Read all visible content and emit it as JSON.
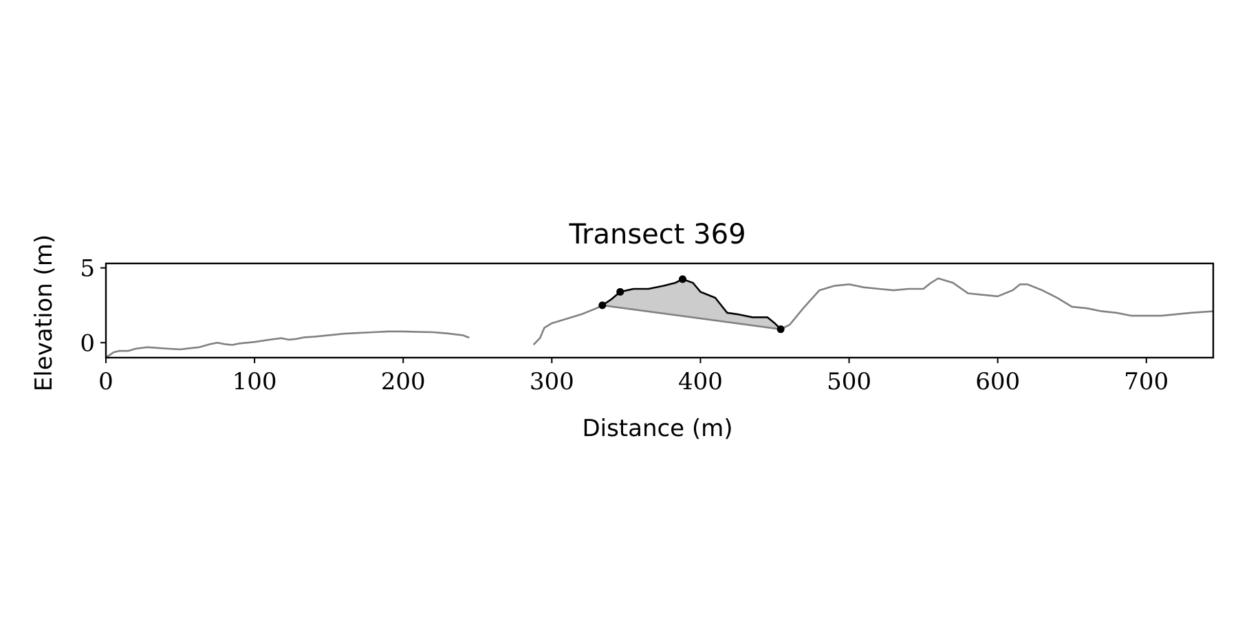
{
  "chart_data": {
    "type": "line",
    "title": "Transect 369",
    "xlabel": "Distance (m)",
    "ylabel": "Elevation (m)",
    "xlim": [
      0,
      745
    ],
    "ylim": [
      -1,
      5.3
    ],
    "x_ticks": [
      0,
      100,
      200,
      300,
      400,
      500,
      600,
      700
    ],
    "y_ticks": [
      0,
      5
    ],
    "grid": false,
    "colors": {
      "profile": "#808080",
      "dune": "#000000",
      "fill": "#cccccc",
      "axes": "#000000"
    },
    "series": [
      {
        "role": "profile-segment-1",
        "x": [
          0,
          5,
          9,
          15,
          20,
          28,
          35,
          42,
          50,
          58,
          63,
          70,
          75,
          80,
          85,
          90,
          95,
          100,
          110,
          118,
          123,
          128,
          133,
          140,
          150,
          160,
          170,
          180,
          190,
          200,
          210,
          220,
          230,
          240,
          244
        ],
        "y": [
          -1.0,
          -0.65,
          -0.55,
          -0.55,
          -0.4,
          -0.3,
          -0.35,
          -0.4,
          -0.45,
          -0.35,
          -0.3,
          -0.1,
          0.0,
          -0.1,
          -0.15,
          -0.05,
          0.0,
          0.05,
          0.2,
          0.3,
          0.2,
          0.25,
          0.35,
          0.4,
          0.5,
          0.6,
          0.65,
          0.7,
          0.75,
          0.75,
          0.72,
          0.7,
          0.62,
          0.5,
          0.35
        ]
      },
      {
        "role": "profile-segment-2",
        "x": [
          288,
          292,
          295,
          300,
          310,
          320,
          330,
          334,
          454,
          460,
          470,
          480,
          490,
          500,
          510,
          520,
          530,
          540,
          550,
          555,
          560,
          570,
          580,
          590,
          600,
          610,
          615,
          620,
          630,
          640,
          650,
          660,
          670,
          680,
          690,
          700,
          710,
          720,
          730,
          745
        ],
        "y": [
          -0.1,
          0.3,
          1.0,
          1.3,
          1.6,
          1.9,
          2.3,
          2.5,
          0.9,
          1.2,
          2.4,
          3.5,
          3.8,
          3.9,
          3.7,
          3.6,
          3.5,
          3.6,
          3.6,
          4.0,
          4.3,
          4.0,
          3.3,
          3.2,
          3.1,
          3.5,
          3.9,
          3.9,
          3.5,
          3.0,
          2.4,
          2.3,
          2.1,
          2.0,
          1.8,
          1.8,
          1.8,
          1.9,
          2.0,
          2.1
        ]
      },
      {
        "role": "dune-segment",
        "x": [
          334,
          340,
          346,
          355,
          365,
          375,
          383,
          388,
          395,
          400,
          410,
          418,
          425,
          430,
          435,
          440,
          445,
          450,
          454
        ],
        "y": [
          2.5,
          2.9,
          3.4,
          3.6,
          3.6,
          3.8,
          4.0,
          4.25,
          4.0,
          3.4,
          3.0,
          2.0,
          1.9,
          1.8,
          1.7,
          1.7,
          1.7,
          1.3,
          0.9
        ]
      }
    ],
    "markers": [
      {
        "x": 334,
        "y": 2.5
      },
      {
        "x": 346,
        "y": 3.4
      },
      {
        "x": 388,
        "y": 4.25
      },
      {
        "x": 454,
        "y": 0.9
      }
    ]
  }
}
